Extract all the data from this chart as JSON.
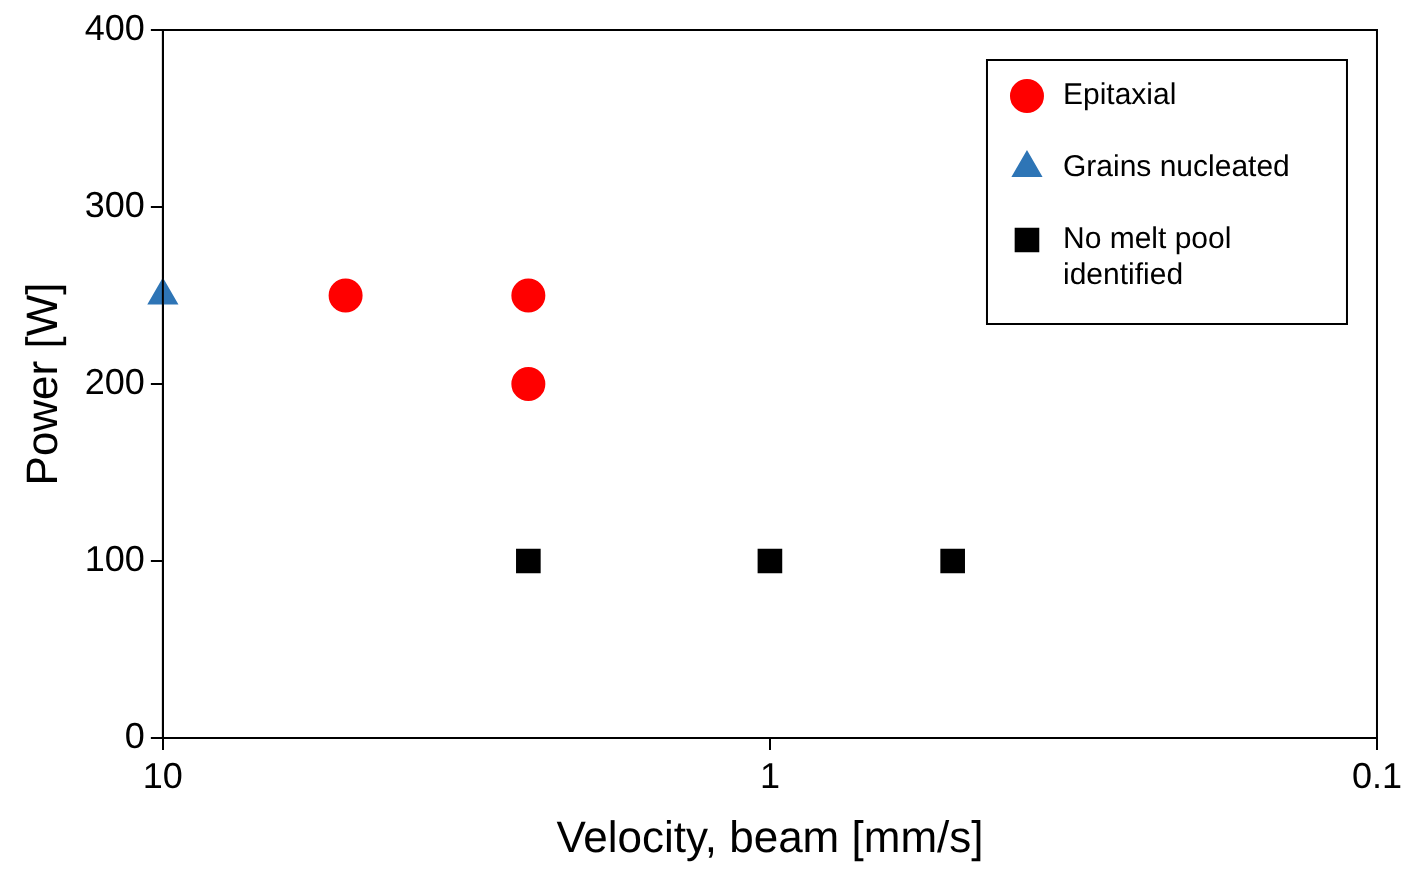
{
  "chart_data": {
    "type": "scatter",
    "xlabel": "Velocity, beam [mm/s]",
    "ylabel": "Power [W]",
    "log": "x",
    "xlim": [
      10,
      0.1
    ],
    "xticks": [
      10,
      1,
      0.1
    ],
    "ylim": [
      0,
      400
    ],
    "yticks": [
      0,
      100,
      200,
      300,
      400
    ],
    "grid": false,
    "legend": "top right",
    "series": [
      {
        "name": "Epitaxial",
        "color": "#ff0000",
        "marker": "circle",
        "x": [
          5,
          2.5,
          2.5
        ],
        "values": [
          250,
          250,
          200
        ]
      },
      {
        "name": "Grains nucleated",
        "color": "#2e75b6",
        "marker": "triangle",
        "x": [
          10
        ],
        "values": [
          250
        ]
      },
      {
        "name": "No melt pool identified",
        "color": "#000000",
        "marker": "square",
        "x": [
          2.5,
          1,
          0.5
        ],
        "values": [
          100,
          100,
          100
        ]
      }
    ]
  }
}
